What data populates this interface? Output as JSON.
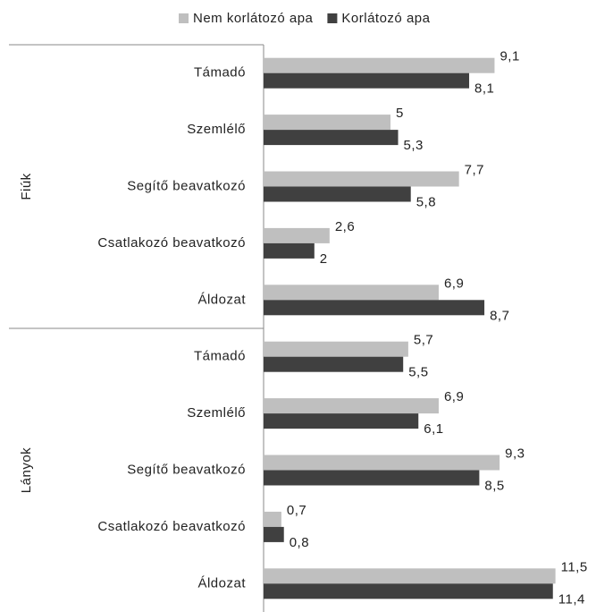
{
  "chart_data": {
    "type": "hbar",
    "group_labels": [
      "Fiúk",
      "Lányok"
    ],
    "categories": [
      "Támadó",
      "Szemlélő",
      "Segítő beavatkozó",
      "Csatlakozó beavatkozó",
      "Áldozat",
      "Támadó",
      "Szemlélő",
      "Segítő beavatkozó",
      "Csatlakozó beavatkozó",
      "Áldozat"
    ],
    "series": [
      {
        "name": "Nem korlátozó apa",
        "color": "#bfbfbf",
        "values": [
          9.1,
          5,
          7.7,
          2.6,
          6.9,
          5.7,
          6.9,
          9.3,
          0.7,
          11.5
        ],
        "value_labels": [
          "9,1",
          "5",
          "7,7",
          "2,6",
          "6,9",
          "5,7",
          "6,9",
          "9,3",
          "0,7",
          "11,5"
        ]
      },
      {
        "name": "Korlátozó apa",
        "color": "#404040",
        "values": [
          8.1,
          5.3,
          5.8,
          2,
          8.7,
          5.5,
          6.1,
          8.5,
          0.8,
          11.4
        ],
        "value_labels": [
          "8,1",
          "5,3",
          "5,8",
          "2",
          "8,7",
          "5,5",
          "6,1",
          "8,5",
          "0,8",
          "11,4"
        ]
      }
    ],
    "xlim": [
      0,
      12.5
    ],
    "legend": "top"
  }
}
